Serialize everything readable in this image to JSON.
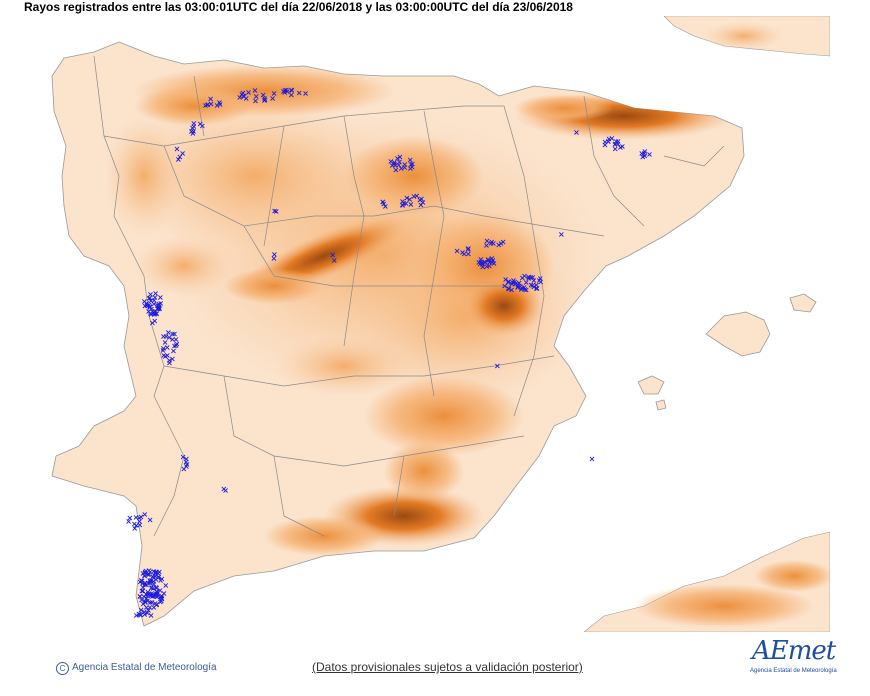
{
  "header": {
    "title": "Rayos registrados entre las 03:00:01UTC del día 22/06/2018 y las 03:00:00UTC del día 23/06/2018"
  },
  "map": {
    "colors": {
      "terrain_low": "#fbe3cc",
      "terrain_mid": "#f5b070",
      "terrain_high": "#e27a24",
      "terrain_peak": "#9a4a10",
      "sea": "#ffffff",
      "borders": "#8a8a8a",
      "lightning": "#1c1ce0"
    },
    "legend_symbol": "x-mark"
  },
  "footer": {
    "copyright_symbol": "C",
    "agency": "Agencia Estatal de Meteorología",
    "disclaimer": "(Datos provisionales sujetos a validación posterior)"
  },
  "logo": {
    "wordmark": "AEmet",
    "subtitle": "Agencia Estatal de Meteorología"
  }
}
